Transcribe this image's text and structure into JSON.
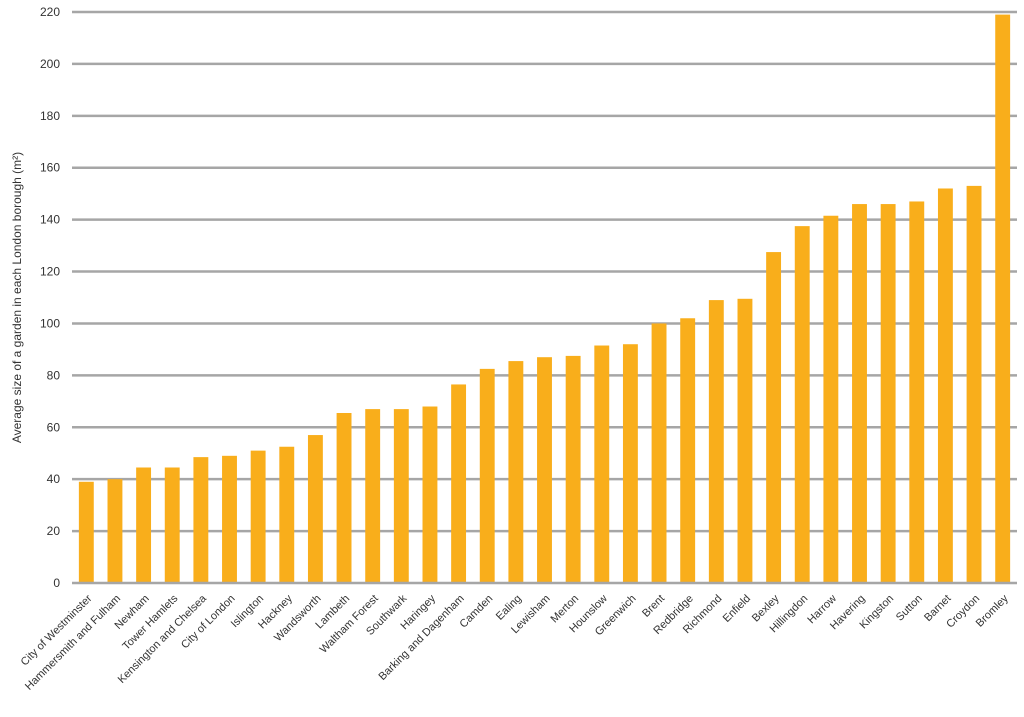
{
  "chart_data": {
    "type": "bar",
    "title": "",
    "xlabel": "",
    "ylabel": "Average size of a garden in each London borough (m²)",
    "ylim": [
      0,
      220
    ],
    "yticks": [
      0,
      20,
      40,
      60,
      80,
      100,
      120,
      140,
      160,
      180,
      200,
      220
    ],
    "grid": true,
    "legend": "none",
    "bar_color": "#F9AE1B",
    "grid_color": "#A6A6A6",
    "categories": [
      "City of Westminster",
      "Hammersmith and Fulham",
      "Newham",
      "Tower Hamlets",
      "Kensington and Chelsea",
      "City of London",
      "Islington",
      "Hackney",
      "Wandsworth",
      "Lambeth",
      "Waltham Forest",
      "Southwark",
      "Haringey",
      "Barking and Dagenham",
      "Camden",
      "Ealing",
      "Lewisham",
      "Merton",
      "Hounslow",
      "Greenwich",
      "Brent",
      "Redbridge",
      "Richmond",
      "Enfield",
      "Bexley",
      "Hillingdon",
      "Harrow",
      "Havering",
      "Kingston",
      "Sutton",
      "Barnet",
      "Croydon",
      "Bromley"
    ],
    "values": [
      39,
      40,
      44.5,
      44.5,
      48.5,
      49,
      51,
      52.5,
      57,
      65.5,
      67,
      67,
      68,
      76.5,
      82.5,
      85.5,
      87,
      87.5,
      91.5,
      92,
      100,
      102,
      109,
      109.5,
      127.5,
      137.5,
      141.5,
      146,
      146,
      147,
      152,
      153,
      219
    ]
  }
}
